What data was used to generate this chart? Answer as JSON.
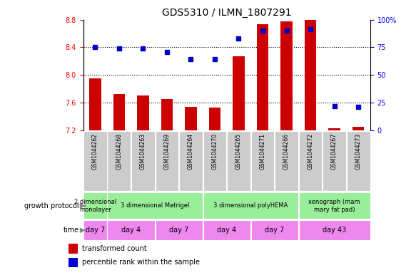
{
  "title": "GDS5310 / ILMN_1807291",
  "samples": [
    "GSM1044262",
    "GSM1044268",
    "GSM1044263",
    "GSM1044269",
    "GSM1044264",
    "GSM1044270",
    "GSM1044265",
    "GSM1044271",
    "GSM1044266",
    "GSM1044272",
    "GSM1044267",
    "GSM1044273"
  ],
  "transformed_count": [
    7.95,
    7.72,
    7.7,
    7.65,
    7.54,
    7.53,
    8.27,
    8.73,
    8.77,
    8.8,
    7.23,
    7.25
  ],
  "percentile_rank": [
    75,
    74,
    74,
    71,
    64,
    64,
    83,
    90,
    90,
    91,
    22,
    21
  ],
  "ylim_left": [
    7.2,
    8.8
  ],
  "ylim_right": [
    0,
    100
  ],
  "yticks_left": [
    7.2,
    7.6,
    8.0,
    8.4,
    8.8
  ],
  "yticks_right": [
    0,
    25,
    50,
    75,
    100
  ],
  "bar_color": "#cc0000",
  "dot_color": "#0000cc",
  "bar_bottom": 7.2,
  "growth_protocol_groups": [
    {
      "label": "2 dimensional\nmonolayer",
      "start": 0,
      "end": 1
    },
    {
      "label": "3 dimensional Matrigel",
      "start": 1,
      "end": 5
    },
    {
      "label": "3 dimensional polyHEMA",
      "start": 5,
      "end": 9
    },
    {
      "label": "xenograph (mam\nmary fat pad)",
      "start": 9,
      "end": 12
    }
  ],
  "time_groups": [
    {
      "label": "day 7",
      "start": 0,
      "end": 1
    },
    {
      "label": "day 4",
      "start": 1,
      "end": 3
    },
    {
      "label": "day 7",
      "start": 3,
      "end": 5
    },
    {
      "label": "day 4",
      "start": 5,
      "end": 7
    },
    {
      "label": "day 7",
      "start": 7,
      "end": 9
    },
    {
      "label": "day 43",
      "start": 9,
      "end": 12
    }
  ],
  "sample_bg_color": "#cccccc",
  "protocol_color": "#99ee99",
  "time_color": "#ee88ee",
  "fig_width": 5.83,
  "fig_height": 3.93,
  "dpi": 100
}
